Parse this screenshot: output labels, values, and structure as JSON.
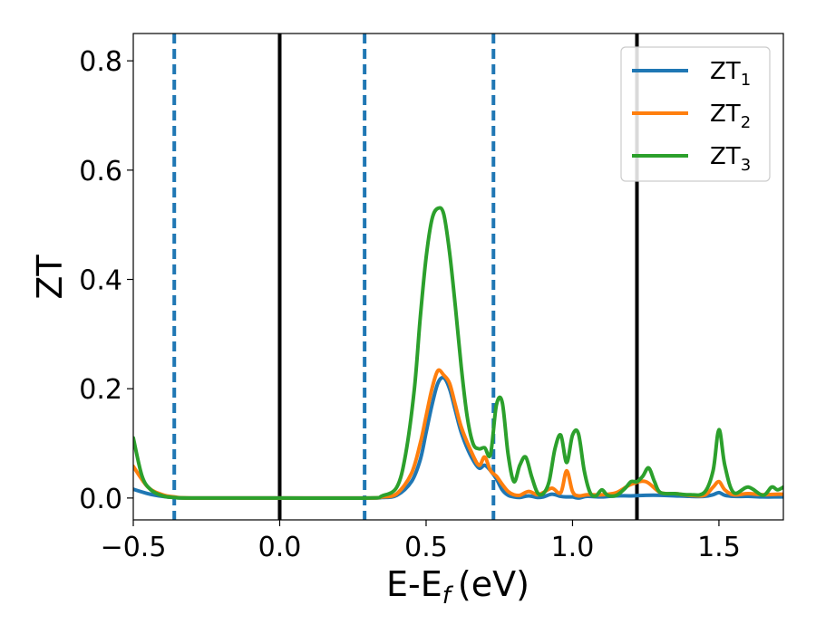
{
  "chart_data": {
    "type": "line",
    "xlabel": "E-E",
    "xlabel_sub": "f",
    "xlabel_unit": "(eV)",
    "ylabel": "ZT",
    "xlim": [
      -0.5,
      1.72
    ],
    "ylim": [
      -0.04,
      0.85
    ],
    "xticks": [
      -0.5,
      0.0,
      0.5,
      1.0,
      1.5
    ],
    "xtick_labels": [
      "−0.5",
      "0.0",
      "0.5",
      "1.0",
      "1.5"
    ],
    "yticks": [
      0.0,
      0.2,
      0.4,
      0.6,
      0.8
    ],
    "ytick_labels": [
      "0.0",
      "0.2",
      "0.4",
      "0.6",
      "0.8"
    ],
    "grid": false,
    "legend": "top-right",
    "vlines": [
      {
        "x": -0.36,
        "style": "dashed",
        "color": "#1f77b4"
      },
      {
        "x": 0.0,
        "style": "solid",
        "color": "#000000"
      },
      {
        "x": 0.29,
        "style": "dashed",
        "color": "#1f77b4"
      },
      {
        "x": 0.73,
        "style": "dashed",
        "color": "#1f77b4"
      },
      {
        "x": 1.22,
        "style": "solid",
        "color": "#000000"
      }
    ],
    "series": [
      {
        "name": "ZT",
        "sub": "1",
        "color": "#1f77b4",
        "x": [
          -0.5,
          -0.45,
          -0.4,
          -0.36,
          -0.3,
          0.0,
          0.3,
          0.35,
          0.4,
          0.45,
          0.48,
          0.5,
          0.52,
          0.54,
          0.56,
          0.58,
          0.6,
          0.62,
          0.65,
          0.68,
          0.7,
          0.72,
          0.74,
          0.76,
          0.78,
          0.8,
          0.82,
          0.85,
          0.88,
          0.9,
          0.93,
          0.96,
          0.98,
          1.0,
          1.02,
          1.05,
          1.1,
          1.15,
          1.2,
          1.25,
          1.3,
          1.35,
          1.4,
          1.45,
          1.48,
          1.5,
          1.52,
          1.55,
          1.6,
          1.65,
          1.7,
          1.72
        ],
        "y": [
          0.016,
          0.008,
          0.003,
          0.001,
          0.0,
          0.0,
          0.0,
          0.001,
          0.005,
          0.03,
          0.07,
          0.12,
          0.17,
          0.21,
          0.22,
          0.2,
          0.16,
          0.12,
          0.08,
          0.055,
          0.06,
          0.05,
          0.035,
          0.015,
          0.005,
          0.002,
          0.001,
          0.004,
          0.001,
          0.002,
          0.007,
          0.003,
          0.002,
          0.002,
          0.0,
          0.003,
          0.002,
          0.004,
          0.004,
          0.005,
          0.005,
          0.004,
          0.003,
          0.003,
          0.006,
          0.01,
          0.005,
          0.003,
          0.003,
          0.002,
          0.002,
          0.002
        ]
      },
      {
        "name": "ZT",
        "sub": "2",
        "color": "#ff7f0e",
        "x": [
          -0.5,
          -0.45,
          -0.4,
          -0.36,
          -0.3,
          0.0,
          0.3,
          0.35,
          0.4,
          0.45,
          0.48,
          0.5,
          0.52,
          0.54,
          0.56,
          0.58,
          0.6,
          0.62,
          0.65,
          0.68,
          0.7,
          0.72,
          0.74,
          0.76,
          0.78,
          0.8,
          0.82,
          0.85,
          0.88,
          0.9,
          0.93,
          0.96,
          0.98,
          1.0,
          1.02,
          1.05,
          1.1,
          1.15,
          1.2,
          1.25,
          1.3,
          1.35,
          1.4,
          1.45,
          1.48,
          1.5,
          1.52,
          1.55,
          1.6,
          1.65,
          1.7,
          1.72
        ],
        "y": [
          0.058,
          0.02,
          0.006,
          0.002,
          0.0,
          0.0,
          0.0,
          0.002,
          0.008,
          0.045,
          0.1,
          0.15,
          0.2,
          0.233,
          0.225,
          0.21,
          0.17,
          0.13,
          0.09,
          0.06,
          0.075,
          0.05,
          0.04,
          0.025,
          0.012,
          0.006,
          0.005,
          0.012,
          0.006,
          0.01,
          0.018,
          0.01,
          0.05,
          0.012,
          0.004,
          0.006,
          0.006,
          0.01,
          0.025,
          0.03,
          0.01,
          0.008,
          0.005,
          0.005,
          0.02,
          0.03,
          0.015,
          0.006,
          0.008,
          0.006,
          0.007,
          0.007
        ]
      },
      {
        "name": "ZT",
        "sub": "3",
        "color": "#2ca02c",
        "x": [
          -0.5,
          -0.47,
          -0.44,
          -0.4,
          -0.36,
          -0.3,
          0.0,
          0.3,
          0.35,
          0.4,
          0.43,
          0.46,
          0.48,
          0.5,
          0.52,
          0.54,
          0.56,
          0.58,
          0.6,
          0.62,
          0.64,
          0.66,
          0.68,
          0.7,
          0.72,
          0.74,
          0.76,
          0.78,
          0.8,
          0.82,
          0.84,
          0.86,
          0.88,
          0.9,
          0.92,
          0.94,
          0.96,
          0.98,
          1.0,
          1.02,
          1.04,
          1.06,
          1.08,
          1.1,
          1.12,
          1.15,
          1.18,
          1.2,
          1.22,
          1.24,
          1.26,
          1.28,
          1.3,
          1.35,
          1.4,
          1.45,
          1.48,
          1.5,
          1.52,
          1.55,
          1.6,
          1.65,
          1.68,
          1.7,
          1.72
        ],
        "y": [
          0.11,
          0.04,
          0.015,
          0.004,
          0.001,
          0.0,
          0.0,
          0.0,
          0.004,
          0.02,
          0.08,
          0.2,
          0.33,
          0.44,
          0.51,
          0.53,
          0.52,
          0.45,
          0.35,
          0.24,
          0.15,
          0.1,
          0.09,
          0.092,
          0.08,
          0.17,
          0.175,
          0.08,
          0.03,
          0.06,
          0.075,
          0.04,
          0.01,
          0.008,
          0.03,
          0.09,
          0.115,
          0.065,
          0.115,
          0.118,
          0.05,
          0.01,
          0.004,
          0.015,
          0.005,
          0.005,
          0.018,
          0.03,
          0.03,
          0.04,
          0.055,
          0.03,
          0.01,
          0.008,
          0.006,
          0.01,
          0.05,
          0.125,
          0.06,
          0.01,
          0.02,
          0.005,
          0.02,
          0.015,
          0.02
        ]
      }
    ]
  }
}
